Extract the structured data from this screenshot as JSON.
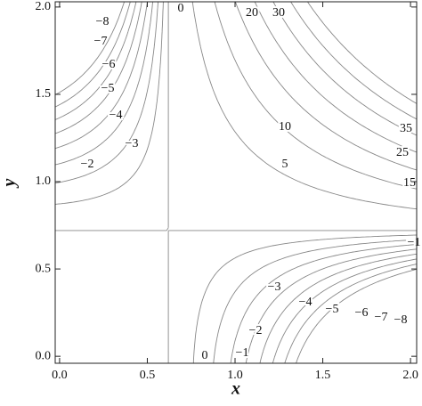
{
  "chart_data": {
    "type": "contour",
    "x_label": "x",
    "y_label": "y",
    "xlim": [
      -0.025,
      2.035
    ],
    "ylim": [
      -0.04,
      2.03
    ],
    "xticks": [
      {
        "value": 0,
        "label": "0.0"
      },
      0.5,
      {
        "value": 1,
        "label": "1.0"
      },
      1.5,
      {
        "value": 2,
        "label": "2.0"
      }
    ],
    "yticks": [
      {
        "value": 0,
        "label": "0.0"
      },
      0.5,
      {
        "value": 1,
        "label": "1.0"
      },
      1.5,
      {
        "value": 2,
        "label": "2.0"
      }
    ],
    "line_color": "#888888",
    "contours": [
      {
        "value": -8,
        "label": "−8"
      },
      {
        "value": -7,
        "label": "−7"
      },
      {
        "value": -6,
        "label": "−6"
      },
      {
        "value": -5,
        "label": "−5"
      },
      {
        "value": -4,
        "label": "−4"
      },
      {
        "value": -3,
        "label": "−3"
      },
      {
        "value": -2,
        "label": "−2"
      },
      {
        "value": -1,
        "label": "−1"
      },
      0,
      5,
      10,
      15,
      20,
      25,
      30,
      35
    ]
  }
}
